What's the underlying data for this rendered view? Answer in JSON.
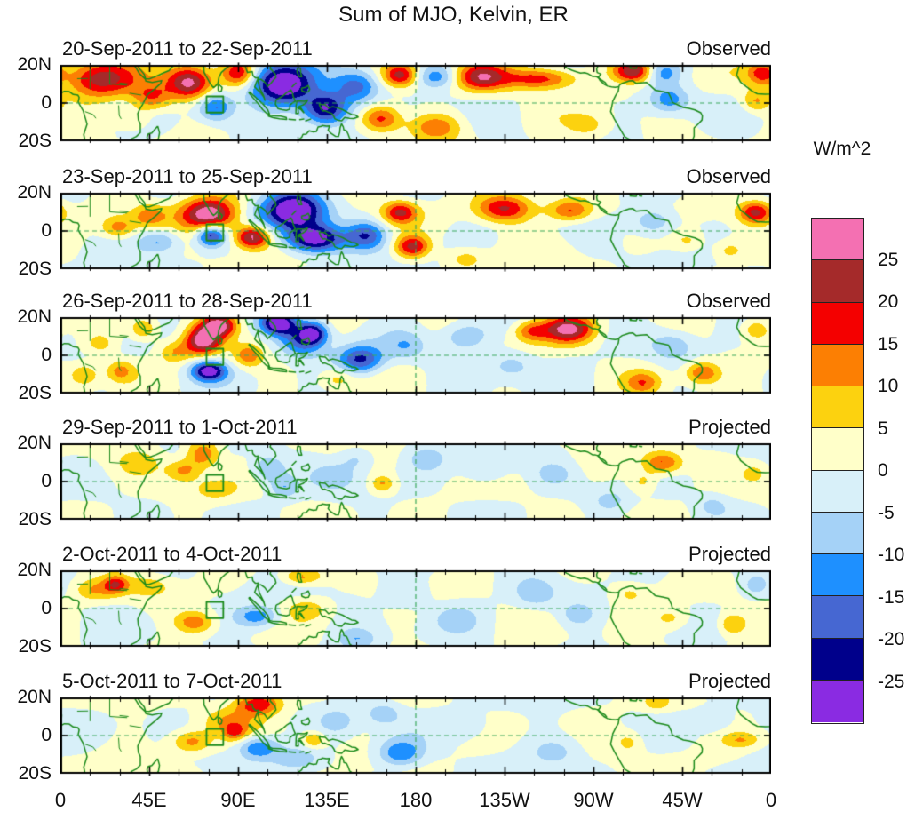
{
  "chart_data": {
    "type": "heatmap",
    "title": "Sum of MJO, Kelvin, ER",
    "units": "W/m^2",
    "lon_range_deg": [
      0,
      360
    ],
    "lat_range_deg": [
      -20,
      20
    ],
    "x_tick_labels": [
      "0",
      "45E",
      "90E",
      "135E",
      "180",
      "135W",
      "90W",
      "45W",
      "0"
    ],
    "x_tick_lons": [
      0,
      45,
      90,
      135,
      180,
      225,
      270,
      315,
      360
    ],
    "y_tick_labels": [
      "20N",
      "0",
      "20S"
    ],
    "contour_levels": [
      -25,
      -20,
      -15,
      -10,
      -5,
      0,
      5,
      10,
      15,
      20,
      25
    ],
    "palette_low_to_high": [
      "#8A2BE2",
      "#00008B",
      "#4667D2",
      "#1E90FF",
      "#A5D2F7",
      "#D8F0F9",
      "#FFFFC9",
      "#FCD20F",
      "#FC7F03",
      "#F40000",
      "#A52A2A",
      "#F470B2"
    ],
    "colorbar": {
      "unit_label": "W/m^2",
      "tick_labels_top_to_bottom": [
        "25",
        "20",
        "15",
        "10",
        "5",
        "0",
        "-5",
        "-10",
        "-15",
        "-20",
        "-25"
      ],
      "colors_top_to_bottom": [
        "#F470B2",
        "#A52A2A",
        "#F40000",
        "#FC7F03",
        "#FCD20F",
        "#FFFFC9",
        "#D8F0F9",
        "#A5D2F7",
        "#1E90FF",
        "#4667D2",
        "#00008B",
        "#8A2BE2"
      ]
    },
    "map_style": {
      "coastline_color": "#1b8a1b",
      "grid_dash_color": "#3aa85c",
      "dateline_lon": 180,
      "box_marker": {
        "lon_min": 74,
        "lon_max": 82.5,
        "lat_min": -5,
        "lat_max": 3.5
      }
    },
    "anomaly_format": "[lon_deg_east, lat_deg, peak_wm2, sigma_lon_deg, sigma_lat_deg]",
    "panels": [
      {
        "date_range": "20-Sep-2011 to 22-Sep-2011",
        "type_label": "Observed",
        "texture_amps": [
          2.8,
          2.2
        ],
        "texture_seeds": [
          0.5,
          1.1,
          2.3,
          0.7
        ],
        "anomalies": [
          [
            20,
            13,
            24,
            13,
            7
          ],
          [
            46,
            3,
            15,
            7,
            5
          ],
          [
            65,
            11,
            27,
            8,
            6
          ],
          [
            78,
            -2,
            -16,
            6,
            5
          ],
          [
            90,
            16,
            21,
            6,
            5
          ],
          [
            112,
            10,
            -32,
            11,
            8
          ],
          [
            134,
            -3,
            -28,
            8,
            6
          ],
          [
            150,
            9,
            -17,
            8,
            6
          ],
          [
            162,
            -8,
            19,
            7,
            5
          ],
          [
            172,
            15,
            21,
            6,
            4
          ],
          [
            190,
            14,
            -13,
            7,
            4
          ],
          [
            213,
            14,
            22,
            9,
            5
          ],
          [
            243,
            13,
            20,
            13,
            4
          ],
          [
            190,
            -12,
            12,
            9,
            5
          ],
          [
            290,
            17,
            25,
            7,
            4
          ],
          [
            305,
            16,
            -12,
            6,
            4
          ],
          [
            308,
            2,
            -13,
            7,
            5
          ],
          [
            352,
            1,
            11,
            5,
            4
          ],
          [
            355,
            16,
            15,
            5,
            4
          ],
          [
            268,
            -12,
            7,
            8,
            5
          ],
          [
            37,
            -8,
            8,
            6,
            4
          ]
        ]
      },
      {
        "date_range": "23-Sep-2011 to 25-Sep-2011",
        "type_label": "Observed",
        "texture_amps": [
          2.8,
          2.2
        ],
        "texture_seeds": [
          1.7,
          0.3,
          3.1,
          1.9
        ],
        "anomalies": [
          [
            75,
            9,
            31,
            10,
            6
          ],
          [
            45,
            8,
            12,
            6,
            4
          ],
          [
            29,
            2,
            13,
            6,
            4
          ],
          [
            50,
            -5,
            -11,
            7,
            4
          ],
          [
            76,
            -2,
            -25,
            5,
            4
          ],
          [
            97,
            -3,
            28,
            6,
            4
          ],
          [
            118,
            11,
            -33,
            11,
            7
          ],
          [
            128,
            -4,
            -30,
            10,
            5
          ],
          [
            155,
            -2,
            -18,
            7,
            5
          ],
          [
            172,
            10,
            20,
            6,
            4
          ],
          [
            178,
            -8,
            22,
            6,
            4
          ],
          [
            225,
            12,
            22,
            10,
            5
          ],
          [
            258,
            11,
            17,
            8,
            4
          ],
          [
            300,
            5,
            -11,
            8,
            5
          ],
          [
            318,
            -5,
            8,
            6,
            4
          ],
          [
            352,
            10,
            22,
            6,
            4
          ],
          [
            338,
            -10,
            8,
            6,
            4
          ],
          [
            205,
            -14,
            8,
            7,
            4
          ]
        ]
      },
      {
        "date_range": "26-Sep-2011 to 28-Sep-2011",
        "type_label": "Observed",
        "texture_amps": [
          2.8,
          2.2
        ],
        "texture_seeds": [
          2.9,
          1.4,
          0.6,
          2.2
        ],
        "anomalies": [
          [
            20,
            6,
            8,
            6,
            4
          ],
          [
            12,
            -10,
            10,
            5,
            4
          ],
          [
            30,
            -8,
            12,
            5,
            4
          ],
          [
            42,
            14,
            12,
            5,
            4
          ],
          [
            72,
            8,
            28,
            6,
            5
          ],
          [
            80,
            16,
            28,
            6,
            4
          ],
          [
            58,
            2,
            10,
            6,
            4
          ],
          [
            95,
            0,
            13,
            5,
            4
          ],
          [
            75,
            -8,
            -28,
            6,
            3.5
          ],
          [
            110,
            17,
            -29,
            6,
            4
          ],
          [
            122,
            8,
            -18,
            8,
            6
          ],
          [
            128,
            12,
            -22,
            5,
            4
          ],
          [
            152,
            -2,
            -21,
            8,
            5
          ],
          [
            140,
            -12,
            8,
            6,
            4
          ],
          [
            175,
            5,
            -8,
            7,
            5
          ],
          [
            205,
            10,
            -11,
            8,
            5
          ],
          [
            228,
            -5,
            -8,
            8,
            5
          ],
          [
            257,
            14,
            26,
            9,
            5
          ],
          [
            238,
            13,
            14,
            6,
            4
          ],
          [
            295,
            -14,
            12,
            6,
            4
          ],
          [
            325,
            -9,
            16,
            6,
            4
          ],
          [
            310,
            5,
            -8,
            7,
            5
          ],
          [
            352,
            14,
            10,
            5,
            4
          ]
        ]
      },
      {
        "date_range": "29-Sep-2011 to 1-Oct-2011",
        "type_label": "Projected",
        "texture_amps": [
          2.4,
          2.0
        ],
        "texture_seeds": [
          0.9,
          2.5,
          1.3,
          3.3
        ],
        "anomalies": [
          [
            72,
            15,
            16,
            6,
            5
          ],
          [
            62,
            6,
            12,
            6,
            4
          ],
          [
            78,
            -4,
            7,
            8,
            4
          ],
          [
            40,
            10,
            7,
            8,
            5
          ],
          [
            105,
            7,
            -11,
            6,
            5
          ],
          [
            113,
            -3,
            -9,
            5,
            4
          ],
          [
            140,
            3,
            -7,
            8,
            5
          ],
          [
            163,
            -1,
            11,
            4,
            3
          ],
          [
            150,
            12,
            -7,
            6,
            4
          ],
          [
            185,
            12,
            -8,
            6,
            4
          ],
          [
            215,
            6,
            -7,
            8,
            5
          ],
          [
            250,
            4,
            -7,
            6,
            4
          ],
          [
            278,
            -10,
            -7,
            6,
            4
          ],
          [
            305,
            10,
            17,
            7,
            4
          ],
          [
            295,
            0,
            8,
            5,
            4
          ],
          [
            330,
            -12,
            -6,
            6,
            4
          ],
          [
            352,
            5,
            6,
            5,
            4
          ]
        ]
      },
      {
        "date_range": "2-Oct-2011 to 4-Oct-2011",
        "type_label": "Projected",
        "texture_amps": [
          2.4,
          2.0
        ],
        "texture_seeds": [
          2.1,
          0.8,
          2.7,
          1.5
        ],
        "anomalies": [
          [
            28,
            13,
            16,
            4,
            3
          ],
          [
            18,
            10,
            10,
            8,
            4
          ],
          [
            45,
            12,
            7,
            8,
            4
          ],
          [
            68,
            -7,
            14,
            7,
            4
          ],
          [
            100,
            -4,
            -14,
            8,
            4
          ],
          [
            122,
            17,
            13,
            7,
            3
          ],
          [
            125,
            0,
            8,
            8,
            4
          ],
          [
            150,
            -16,
            -9,
            7,
            4
          ],
          [
            175,
            8,
            -6,
            8,
            5
          ],
          [
            200,
            -5,
            -6,
            8,
            5
          ],
          [
            240,
            8,
            -8,
            7,
            5
          ],
          [
            262,
            -3,
            -8,
            6,
            4
          ],
          [
            288,
            8,
            6,
            6,
            4
          ],
          [
            310,
            -5,
            7,
            7,
            4
          ],
          [
            340,
            -8,
            11,
            5,
            4
          ],
          [
            352,
            12,
            -7,
            5,
            4
          ]
        ]
      },
      {
        "date_range": "5-Oct-2011 to 7-Oct-2011",
        "type_label": "Projected",
        "texture_amps": [
          2.4,
          2.0
        ],
        "texture_seeds": [
          1.2,
          3.0,
          0.4,
          2.6
        ],
        "anomalies": [
          [
            100,
            17,
            21,
            8,
            4
          ],
          [
            85,
            8,
            9,
            10,
            5
          ],
          [
            66,
            -3,
            13,
            7,
            4
          ],
          [
            88,
            2,
            12,
            4,
            3
          ],
          [
            100,
            -6,
            -16,
            7,
            4
          ],
          [
            128,
            -2,
            12,
            4,
            3
          ],
          [
            120,
            -12,
            -8,
            8,
            4
          ],
          [
            140,
            8,
            -8,
            7,
            5
          ],
          [
            172,
            -9,
            -15,
            8,
            5
          ],
          [
            163,
            12,
            -9,
            6,
            4
          ],
          [
            205,
            5,
            -6,
            9,
            5
          ],
          [
            250,
            -8,
            -6,
            8,
            5
          ],
          [
            288,
            -3,
            7,
            5,
            4
          ],
          [
            302,
            17,
            7,
            5,
            3
          ],
          [
            345,
            -2,
            10,
            7,
            3
          ],
          [
            330,
            8,
            -6,
            6,
            4
          ]
        ]
      }
    ]
  }
}
